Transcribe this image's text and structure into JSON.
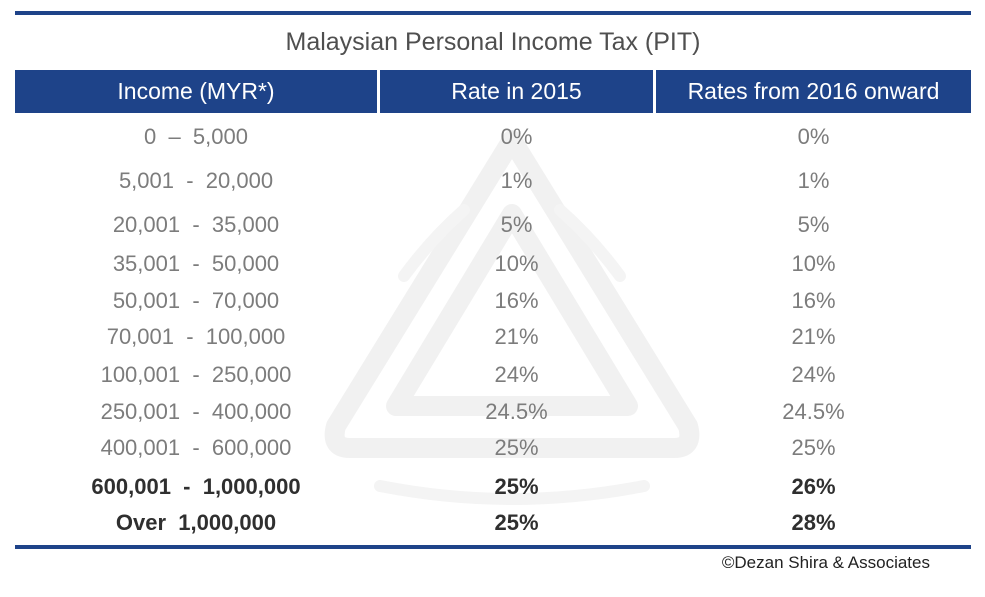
{
  "title": "Malaysian Personal Income Tax (PIT)",
  "headers": [
    "Income  (MYR*)",
    "Rate in 2015",
    "Rates from 2016 onward"
  ],
  "rows": [
    [
      "0  –  5,000",
      "0%",
      "0%"
    ],
    [
      "5,001  -  20,000",
      "1%",
      "1%"
    ],
    [
      "20,001  -  35,000",
      "5%",
      "5%"
    ],
    [
      "35,001  -  50,000",
      "10%",
      "10%"
    ],
    [
      "50,001  -  70,000",
      "16%",
      "16%"
    ],
    [
      "70,001  -  100,000",
      "21%",
      "21%"
    ],
    [
      "100,001  -  250,000",
      "24%",
      "24%"
    ],
    [
      "250,001  -  400,000",
      "24.5%",
      "24.5%"
    ],
    [
      "400,001  -  600,000",
      "25%",
      "25%"
    ],
    [
      "600,001  -  1,000,000",
      "25%",
      "26%"
    ],
    [
      "Over  1,000,000",
      "25%",
      "28%"
    ]
  ],
  "footer": "©Dezan Shira & Associates",
  "colors": {
    "header_bg": "#1e4389",
    "header_text": "#ffffff",
    "body_text": "#7c7c7c",
    "bold_text": "#2f2f2f"
  }
}
